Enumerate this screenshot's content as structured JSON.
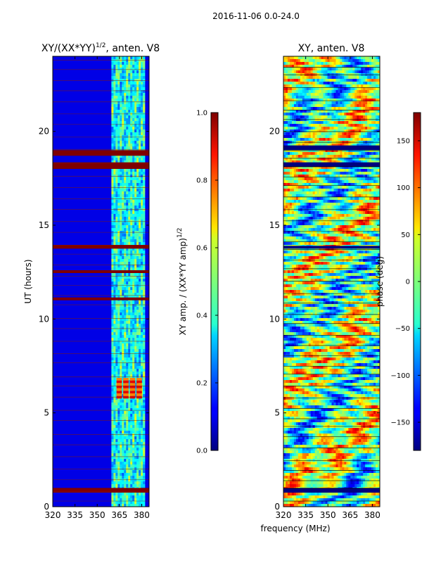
{
  "suptitle": "2016-11-06 0.0-24.0",
  "chart_data": [
    {
      "type": "heatmap",
      "title": "XY/(XX*YY)",
      "title_power": "1/2",
      "title_suffix": ", anten. V8",
      "ylabel": "UT (hours)",
      "xlim": [
        320,
        385
      ],
      "ylim": [
        0,
        24
      ],
      "xticks": [
        "320",
        "335",
        "350",
        "365",
        "380"
      ],
      "xtick_values": [
        320,
        335,
        350,
        365,
        380
      ],
      "yticks": [
        "0",
        "5",
        "10",
        "15",
        "20"
      ],
      "ytick_values": [
        0,
        5,
        10,
        15,
        20
      ],
      "colorscale": "jet",
      "colorbar": {
        "label": "XY amp. / (XX*YY amp)",
        "label_power": "1/2",
        "range": [
          0.0,
          1.0
        ],
        "ticks": [
          "0.0",
          "0.2",
          "0.4",
          "0.6",
          "0.8",
          "1.0"
        ],
        "tick_values": [
          0.0,
          0.2,
          0.4,
          0.6,
          0.8,
          1.0
        ]
      },
      "flagged_bands_hours": [
        [
          18.7,
          19.0
        ],
        [
          18.0,
          18.35
        ],
        [
          13.75,
          13.95
        ],
        [
          12.45,
          12.6
        ],
        [
          11.0,
          11.15
        ],
        [
          0.75,
          1.0
        ]
      ],
      "active_freq_range_mhz": [
        360,
        382
      ],
      "bright_feature": {
        "freq_range_mhz": [
          363,
          381
        ],
        "hours_range": [
          5.8,
          6.9
        ],
        "value": 0.9
      }
    },
    {
      "type": "heatmap",
      "title": "XY, anten. V8",
      "xlabel": "frequency (MHz)",
      "xlim": [
        320,
        385
      ],
      "ylim": [
        0,
        24
      ],
      "xticks": [
        "320",
        "335",
        "350",
        "365",
        "380"
      ],
      "xtick_values": [
        320,
        335,
        350,
        365,
        380
      ],
      "yticks": [
        "0",
        "5",
        "10",
        "15",
        "20"
      ],
      "ytick_values": [
        0,
        5,
        10,
        15,
        20
      ],
      "colorscale": "jet",
      "colorbar": {
        "label": "phase (deg)",
        "range": [
          -180,
          180
        ],
        "ticks": [
          "−150",
          "−100",
          "−50",
          "0",
          "50",
          "100",
          "150"
        ],
        "tick_values": [
          -150,
          -100,
          -50,
          0,
          50,
          100,
          150
        ]
      },
      "flagged_bands_hours": [
        [
          18.1,
          18.35
        ],
        [
          19.0,
          19.25
        ],
        [
          13.75,
          13.9
        ],
        [
          0.75,
          1.0
        ]
      ]
    }
  ]
}
